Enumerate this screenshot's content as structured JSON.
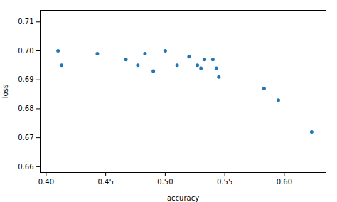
{
  "chart_data": {
    "type": "scatter",
    "x": [
      0.41,
      0.413,
      0.443,
      0.467,
      0.477,
      0.483,
      0.49,
      0.5,
      0.51,
      0.52,
      0.527,
      0.53,
      0.533,
      0.54,
      0.543,
      0.545,
      0.583,
      0.595,
      0.623
    ],
    "y": [
      0.7,
      0.695,
      0.699,
      0.697,
      0.695,
      0.699,
      0.693,
      0.7,
      0.695,
      0.698,
      0.695,
      0.694,
      0.697,
      0.697,
      0.694,
      0.691,
      0.687,
      0.683,
      0.672
    ],
    "xlabel": "accuracy",
    "ylabel": "loss",
    "xlim": [
      0.395,
      0.635
    ],
    "ylim": [
      0.658,
      0.714
    ],
    "xticks": [
      {
        "value": 0.4,
        "label": "0.40"
      },
      0.45,
      {
        "value": 0.5,
        "label": "0.50"
      },
      0.55,
      {
        "value": 0.6,
        "label": "0.60"
      }
    ],
    "yticks": [
      0.66,
      0.67,
      0.68,
      0.69,
      {
        "value": 0.7,
        "label": "0.70"
      },
      0.71
    ],
    "color": "#1f77b4"
  }
}
